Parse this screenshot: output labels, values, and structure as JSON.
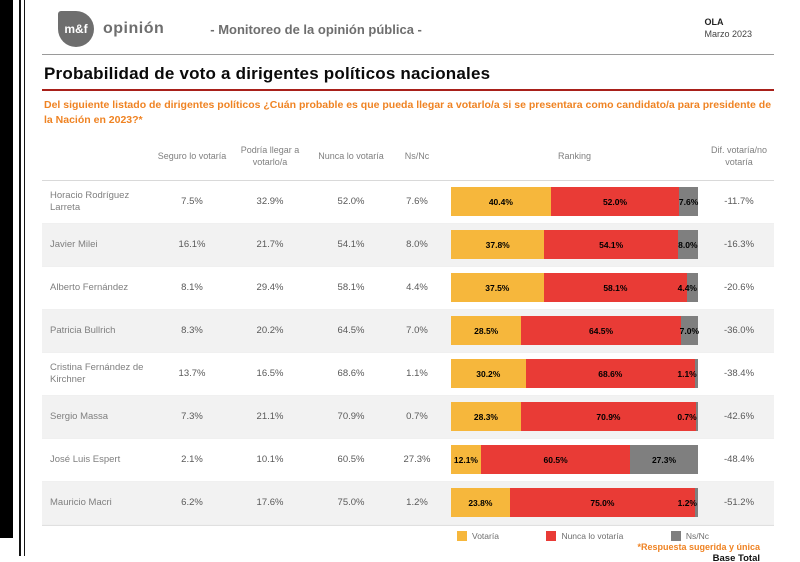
{
  "header": {
    "logo_mark": "m&f",
    "brand": "opinión",
    "subtitle": "- Monitoreo de la opinión pública -",
    "wave_label": "OLA",
    "wave_date": "Marzo 2023"
  },
  "title": "Probabilidad de voto a dirigentes políticos nacionales",
  "question": "Del siguiente listado de dirigentes políticos ¿Cuán probable es que pueda llegar a votarlo/a si se presentara como candidato/a para presidente de la Nación en 2023?*",
  "table": {
    "columns": [
      "Seguro lo votaría",
      "Podría llegar a votarlo/a",
      "Nunca lo votaría",
      "Ns/Nc",
      "Ranking",
      "Dif. votaría/no votaría"
    ],
    "rows": [
      {
        "name": "Horacio Rodríguez Larreta",
        "seguro": "7.5%",
        "podria": "32.9%",
        "nunca": "52.0%",
        "nsnc": "7.6%",
        "bar": {
          "votaria": 40.4,
          "nunca": 52.0,
          "nsnc": 7.6
        },
        "dif": "-11.7%"
      },
      {
        "name": "Javier Milei",
        "seguro": "16.1%",
        "podria": "21.7%",
        "nunca": "54.1%",
        "nsnc": "8.0%",
        "bar": {
          "votaria": 37.8,
          "nunca": 54.1,
          "nsnc": 8.0
        },
        "dif": "-16.3%"
      },
      {
        "name": "Alberto Fernández",
        "seguro": "8.1%",
        "podria": "29.4%",
        "nunca": "58.1%",
        "nsnc": "4.4%",
        "bar": {
          "votaria": 37.5,
          "nunca": 58.1,
          "nsnc": 4.4
        },
        "dif": "-20.6%"
      },
      {
        "name": "Patricia Bullrich",
        "seguro": "8.3%",
        "podria": "20.2%",
        "nunca": "64.5%",
        "nsnc": "7.0%",
        "bar": {
          "votaria": 28.5,
          "nunca": 64.5,
          "nsnc": 7.0
        },
        "dif": "-36.0%"
      },
      {
        "name": "Cristina Fernández de Kirchner",
        "seguro": "13.7%",
        "podria": "16.5%",
        "nunca": "68.6%",
        "nsnc": "1.1%",
        "bar": {
          "votaria": 30.2,
          "nunca": 68.6,
          "nsnc": 1.1
        },
        "dif": "-38.4%"
      },
      {
        "name": "Sergio Massa",
        "seguro": "7.3%",
        "podria": "21.1%",
        "nunca": "70.9%",
        "nsnc": "0.7%",
        "bar": {
          "votaria": 28.3,
          "nunca": 70.9,
          "nsnc": 0.7
        },
        "dif": "-42.6%"
      },
      {
        "name": "José Luis Espert",
        "seguro": "2.1%",
        "podria": "10.1%",
        "nunca": "60.5%",
        "nsnc": "27.3%",
        "bar": {
          "votaria": 12.1,
          "nunca": 60.5,
          "nsnc": 27.3
        },
        "dif": "-48.4%"
      },
      {
        "name": "Mauricio Macri",
        "seguro": "6.2%",
        "podria": "17.6%",
        "nunca": "75.0%",
        "nsnc": "1.2%",
        "bar": {
          "votaria": 23.8,
          "nunca": 75.0,
          "nsnc": 1.2
        },
        "dif": "-51.2%"
      }
    ]
  },
  "legend": [
    {
      "label": "Votaría",
      "color": "#f6b73c"
    },
    {
      "label": "Nunca lo votaría",
      "color": "#e93b36"
    },
    {
      "label": "Ns/Nc",
      "color": "#7f7f7f"
    }
  ],
  "footnote": "*Respuesta sugerida y única",
  "base_label": "Base Total",
  "colors": {
    "accent_orange": "#ef8323",
    "bar_yellow": "#f6b73c",
    "bar_red": "#e93b36",
    "bar_gray": "#7f7f7f",
    "title_rule_red": "#a8201a",
    "row_stripe": "#f2f2f2",
    "text_gray": "#6e6e6e"
  },
  "chart_data": {
    "type": "bar",
    "orientation": "horizontal-stacked",
    "title": "Probabilidad de voto a dirigentes políticos nacionales",
    "categories": [
      "Horacio Rodríguez Larreta",
      "Javier Milei",
      "Alberto Fernández",
      "Patricia Bullrich",
      "Cristina Fernández de Kirchner",
      "Sergio Massa",
      "José Luis Espert",
      "Mauricio Macri"
    ],
    "series": [
      {
        "name": "Votaría",
        "color": "#f6b73c",
        "values": [
          40.4,
          37.8,
          37.5,
          28.5,
          30.2,
          28.3,
          12.1,
          23.8
        ]
      },
      {
        "name": "Nunca lo votaría",
        "color": "#e93b36",
        "values": [
          52.0,
          54.1,
          58.1,
          64.5,
          68.6,
          70.9,
          60.5,
          75.0
        ]
      },
      {
        "name": "Ns/Nc",
        "color": "#7f7f7f",
        "values": [
          7.6,
          8.0,
          4.4,
          7.0,
          1.1,
          0.7,
          27.3,
          1.2
        ]
      }
    ],
    "detail_columns": {
      "Seguro lo votaría": [
        7.5,
        16.1,
        8.1,
        8.3,
        13.7,
        7.3,
        2.1,
        6.2
      ],
      "Podría llegar a votarlo/a": [
        32.9,
        21.7,
        29.4,
        20.2,
        16.5,
        21.1,
        10.1,
        17.6
      ],
      "Nunca lo votaría": [
        52.0,
        54.1,
        58.1,
        64.5,
        68.6,
        70.9,
        60.5,
        75.0
      ],
      "Ns/Nc": [
        7.6,
        8.0,
        4.4,
        7.0,
        1.1,
        0.7,
        27.3,
        1.2
      ]
    },
    "dif_votaria_no_votaria": [
      -11.7,
      -16.3,
      -20.6,
      -36.0,
      -38.4,
      -42.6,
      -48.4,
      -51.2
    ],
    "xlim": [
      0,
      100
    ],
    "legend_position": "bottom"
  }
}
